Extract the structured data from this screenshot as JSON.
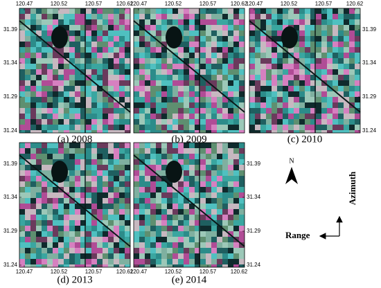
{
  "panels": [
    {
      "caption": "(a) 2008"
    },
    {
      "caption": "(b) 2009"
    },
    {
      "caption": "(c) 2010"
    },
    {
      "caption": "(d) 2013"
    },
    {
      "caption": "(e) 2014"
    }
  ],
  "lon_ticks": [
    "120.47",
    "120.52",
    "120.57",
    "120.62"
  ],
  "lat_ticks": [
    "31.39",
    "31.34",
    "31.29",
    "31.24"
  ],
  "north_label": "N",
  "range_label": "Range",
  "azimuth_label": "Azimuth"
}
